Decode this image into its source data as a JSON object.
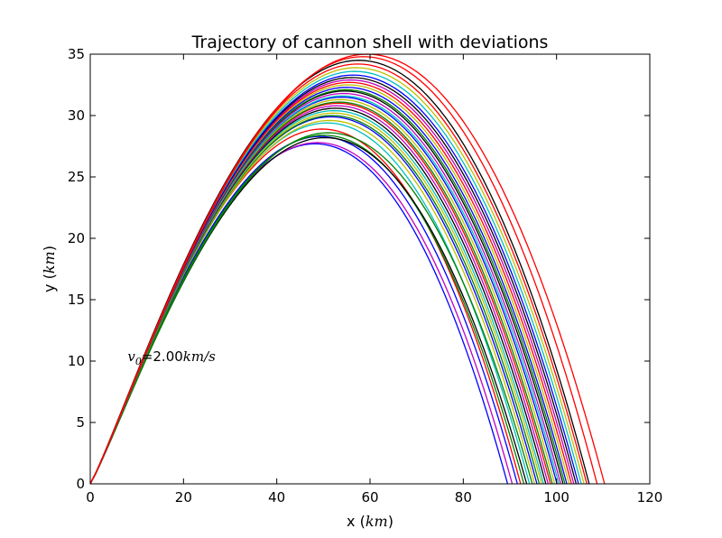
{
  "chart_data": {
    "type": "line",
    "title": "Trajectory of cannon shell with deviations",
    "xlabel": {
      "text": "x (",
      "unit": "km",
      "close": ")"
    },
    "ylabel": {
      "text": "y (",
      "unit": "km",
      "close": ")"
    },
    "xlim": [
      0,
      120
    ],
    "ylim": [
      0,
      35
    ],
    "xticks": [
      "0",
      "20",
      "40",
      "60",
      "80",
      "100",
      "120"
    ],
    "yticks": [
      "0",
      "5",
      "10",
      "15",
      "20",
      "25",
      "30",
      "35"
    ],
    "grid": false,
    "annotation": {
      "prefix": "v",
      "sub": "0",
      "value": "=2.00",
      "unit": "km/s",
      "x": 8,
      "y": 10
    },
    "colors": [
      "#0000ff",
      "#008000",
      "#ff0000",
      "#00bfbf",
      "#bf00bf",
      "#bfbf00",
      "#000000"
    ],
    "series": [
      {
        "range": 89.5,
        "peak": 27.7,
        "color": "#0000ff"
      },
      {
        "range": 90.5,
        "peak": 27.8,
        "color": "#bf00bf"
      },
      {
        "range": 91.6,
        "peak": 28.3,
        "color": "#0000ff"
      },
      {
        "range": 92.3,
        "peak": 28.9,
        "color": "#ff0000"
      },
      {
        "range": 93.0,
        "peak": 28.4,
        "color": "#008000"
      },
      {
        "range": 93.6,
        "peak": 28.2,
        "color": "#000000"
      },
      {
        "range": 94.2,
        "peak": 29.4,
        "color": "#00bfbf"
      },
      {
        "range": 94.8,
        "peak": 28.6,
        "color": "#008000"
      },
      {
        "range": 95.3,
        "peak": 29.6,
        "color": "#bfbf00"
      },
      {
        "range": 95.8,
        "peak": 29.9,
        "color": "#0000ff"
      },
      {
        "range": 96.3,
        "peak": 30.0,
        "color": "#008000"
      },
      {
        "range": 96.8,
        "peak": 30.2,
        "color": "#bfbf00"
      },
      {
        "range": 97.2,
        "peak": 30.4,
        "color": "#00bfbf"
      },
      {
        "range": 97.7,
        "peak": 30.6,
        "color": "#000000"
      },
      {
        "range": 98.2,
        "peak": 30.8,
        "color": "#bf00bf"
      },
      {
        "range": 98.7,
        "peak": 31.0,
        "color": "#ff0000"
      },
      {
        "range": 99.1,
        "peak": 31.1,
        "color": "#008000"
      },
      {
        "range": 99.6,
        "peak": 31.3,
        "color": "#bfbf00"
      },
      {
        "range": 100.1,
        "peak": 31.5,
        "color": "#0000ff"
      },
      {
        "range": 100.5,
        "peak": 31.6,
        "color": "#00bfbf"
      },
      {
        "range": 100.9,
        "peak": 31.8,
        "color": "#bf00bf"
      },
      {
        "range": 101.4,
        "peak": 32.0,
        "color": "#000000"
      },
      {
        "range": 101.8,
        "peak": 32.1,
        "color": "#008000"
      },
      {
        "range": 102.2,
        "peak": 32.3,
        "color": "#0000ff"
      },
      {
        "range": 102.7,
        "peak": 32.5,
        "color": "#bfbf00"
      },
      {
        "range": 103.2,
        "peak": 32.7,
        "color": "#ff0000"
      },
      {
        "range": 103.7,
        "peak": 32.9,
        "color": "#bf00bf"
      },
      {
        "range": 104.2,
        "peak": 33.1,
        "color": "#000000"
      },
      {
        "range": 104.7,
        "peak": 33.3,
        "color": "#0000ff"
      },
      {
        "range": 105.3,
        "peak": 33.6,
        "color": "#00bfbf"
      },
      {
        "range": 105.9,
        "peak": 33.9,
        "color": "#bfbf00"
      },
      {
        "range": 106.5,
        "peak": 34.2,
        "color": "#ff0000"
      },
      {
        "range": 107.0,
        "peak": 34.5,
        "color": "#000000"
      },
      {
        "range": 108.7,
        "peak": 34.8,
        "color": "#ff0000"
      },
      {
        "range": 110.3,
        "peak": 35.0,
        "color": "#ff0000"
      }
    ]
  }
}
